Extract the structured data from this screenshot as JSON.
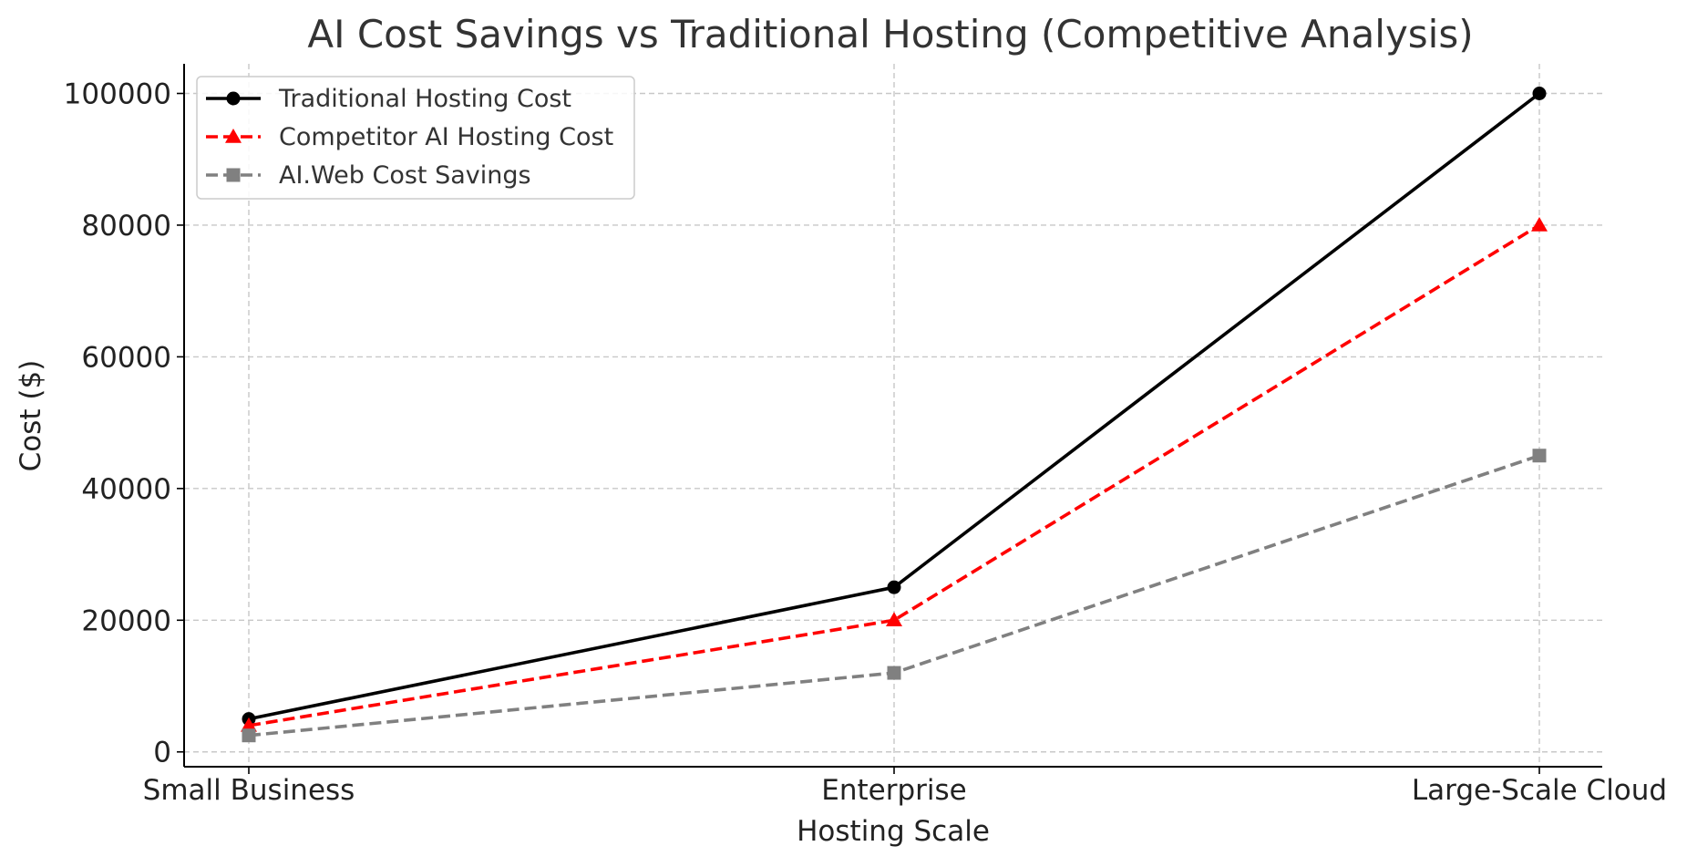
{
  "chart_data": {
    "type": "line",
    "title": "AI Cost Savings vs Traditional Hosting (Competitive Analysis)",
    "xlabel": "Hosting Scale",
    "ylabel": "Cost ($)",
    "categories": [
      "Small Business",
      "Enterprise",
      "Large-Scale Cloud"
    ],
    "ylim": [
      -2250,
      104500
    ],
    "yticks": [
      0,
      20000,
      40000,
      60000,
      80000,
      100000
    ],
    "ytick_labels": [
      "0",
      "20000",
      "40000",
      "60000",
      "80000",
      "100000"
    ],
    "grid": true,
    "legend_position": "top-left",
    "series": [
      {
        "name": "Traditional Hosting Cost",
        "values": [
          5000,
          25000,
          100000
        ],
        "color": "#000000",
        "line_style": "solid",
        "marker": "circle"
      },
      {
        "name": "Competitor AI Hosting Cost",
        "values": [
          4000,
          20000,
          80000
        ],
        "color": "#ff0000",
        "line_style": "dashed",
        "marker": "triangle"
      },
      {
        "name": "AI.Web Cost Savings",
        "values": [
          2500,
          12000,
          45000
        ],
        "color": "#808080",
        "line_style": "dashed",
        "marker": "square"
      }
    ]
  }
}
